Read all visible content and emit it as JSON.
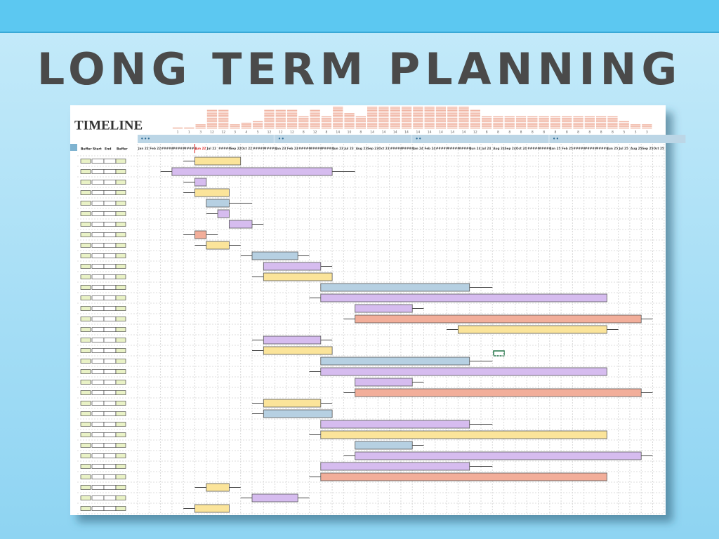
{
  "header": {
    "title": "LONG TERM PLANNING"
  },
  "sheet": {
    "title": "TIMELINE",
    "left_headers": [
      "Buffer",
      "Start",
      "End",
      "Buffer"
    ],
    "group_labels": [
      "•••",
      "••",
      "••",
      "••"
    ],
    "date_labels": [
      "Jan 22",
      "Feb 22",
      "#####",
      "#####",
      "#####",
      "Jun 22",
      "Jul 22",
      "#####",
      "Sep 22",
      "Oct 22",
      "#####",
      "#####",
      "Jan 23",
      "Feb 23",
      "#####",
      "#####",
      "#####",
      "Jun 23",
      "Jul 23",
      "Aug 23",
      "Sep 23",
      "Oct 23",
      "#####",
      "#####",
      "Jan 24",
      "Feb 24",
      "#####",
      "#####",
      "#####",
      "Jun 24",
      "Jul 24",
      "Aug 24",
      "Sep 24",
      "Oct 24",
      "#####",
      "#####",
      "Jan 25",
      "Feb 25",
      "#####",
      "#####",
      "#####",
      "Jun 25",
      "Jul 25",
      "Aug 25",
      "Sep 25",
      "Oct 25"
    ],
    "current_column": 5,
    "load_start_column": 3,
    "load": [
      1,
      1,
      3,
      12,
      12,
      3,
      4,
      5,
      12,
      12,
      12,
      8,
      12,
      8,
      14,
      10,
      8,
      14,
      14,
      14,
      14,
      14,
      14,
      14,
      14,
      14,
      12,
      8,
      8,
      8,
      8,
      8,
      8,
      8,
      8,
      8,
      8,
      8,
      8,
      5,
      3,
      3
    ],
    "colors": {
      "yellow": "#fbe49a",
      "purple": "#d6bcef",
      "blue": "#b6d0e2",
      "salmon": "#f2ae9a"
    },
    "rows": [
      {
        "start": 5,
        "end": 9,
        "lead": 4,
        "color": "yellow"
      },
      {
        "start": 3,
        "end": 17,
        "lead": 2,
        "lag": 19,
        "color": "purple"
      },
      {
        "start": 5,
        "end": 6,
        "lead": 4,
        "color": "purple"
      },
      {
        "start": 5,
        "end": 8,
        "lead": 4,
        "color": "yellow"
      },
      {
        "start": 6,
        "end": 8,
        "lag": 10,
        "color": "blue"
      },
      {
        "start": 7,
        "end": 8,
        "lead": 6,
        "color": "purple"
      },
      {
        "start": 8,
        "end": 10,
        "lag": 11,
        "color": "purple"
      },
      {
        "start": 5,
        "end": 6,
        "lead": 4,
        "lag": 7,
        "color": "salmon"
      },
      {
        "start": 6,
        "end": 8,
        "lead": 5,
        "lag": 9,
        "color": "yellow"
      },
      {
        "start": 10,
        "end": 14,
        "lead": 9,
        "lag": 15,
        "color": "blue"
      },
      {
        "start": 11,
        "end": 16,
        "lag": 17,
        "color": "purple"
      },
      {
        "start": 11,
        "end": 17,
        "lead": 10,
        "color": "yellow"
      },
      {
        "start": 16,
        "end": 29,
        "lag": 31,
        "color": "blue"
      },
      {
        "start": 16,
        "end": 41,
        "lead": 15,
        "color": "purple"
      },
      {
        "start": 19,
        "end": 24,
        "lag": 25,
        "color": "purple"
      },
      {
        "start": 19,
        "end": 44,
        "lead": 18,
        "lag": 45,
        "color": "salmon"
      },
      {
        "start": 28,
        "end": 41,
        "lead": 27,
        "lag": 42,
        "color": "yellow"
      },
      {
        "start": 11,
        "end": 16,
        "lead": 10,
        "lag": 17,
        "color": "purple"
      },
      {
        "start": 11,
        "end": 17,
        "lead": 10,
        "color": "yellow"
      },
      {
        "start": 16,
        "end": 29,
        "lag": 31,
        "color": "blue"
      },
      {
        "start": 16,
        "end": 41,
        "lead": 15,
        "color": "purple"
      },
      {
        "start": 19,
        "end": 24,
        "lag": 25,
        "color": "purple"
      },
      {
        "start": 19,
        "end": 44,
        "lead": 18,
        "lag": 45,
        "color": "salmon"
      },
      {
        "start": 11,
        "end": 16,
        "lead": 10,
        "lag": 17,
        "color": "yellow"
      },
      {
        "start": 11,
        "end": 17,
        "lead": 10,
        "color": "blue"
      },
      {
        "start": 16,
        "end": 29,
        "lag": 31,
        "color": "purple"
      },
      {
        "start": 16,
        "end": 41,
        "lead": 15,
        "color": "yellow"
      },
      {
        "start": 19,
        "end": 24,
        "lag": 25,
        "color": "blue"
      },
      {
        "start": 19,
        "end": 44,
        "lead": 18,
        "lag": 45,
        "color": "purple"
      },
      {
        "start": 16,
        "end": 29,
        "lag": 31,
        "color": "purple"
      },
      {
        "start": 16,
        "end": 41,
        "lead": 15,
        "color": "salmon"
      },
      {
        "start": 6,
        "end": 8,
        "lead": 5,
        "lag": 9,
        "color": "yellow"
      },
      {
        "start": 10,
        "end": 14,
        "lead": 9,
        "lag": 15,
        "color": "purple"
      },
      {
        "start": 5,
        "end": 8,
        "lead": 4,
        "color": "yellow"
      }
    ]
  }
}
